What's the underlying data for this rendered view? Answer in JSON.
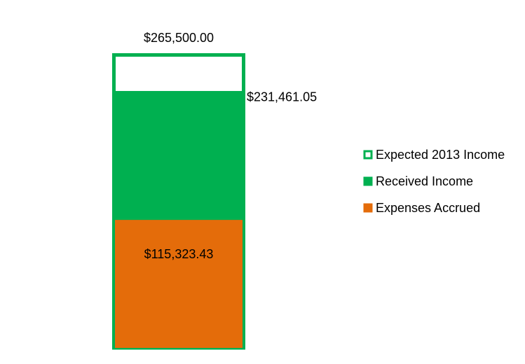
{
  "chart_data": {
    "type": "bar",
    "categories": [
      null
    ],
    "series": [
      {
        "name": "Expected 2013 Income",
        "color": "#00b050",
        "style": "outline",
        "values": [
          265500.0
        ],
        "value_labels": [
          "$265,500.00"
        ]
      },
      {
        "name": "Received Income",
        "color": "#00b050",
        "style": "fill",
        "values": [
          231461.05
        ],
        "value_labels": [
          "$231,461.05"
        ]
      },
      {
        "name": "Expenses Accrued",
        "color": "#e46c0a",
        "style": "fill",
        "values": [
          115323.43
        ],
        "value_labels": [
          "$115,323.43"
        ]
      }
    ],
    "legend": "right"
  }
}
